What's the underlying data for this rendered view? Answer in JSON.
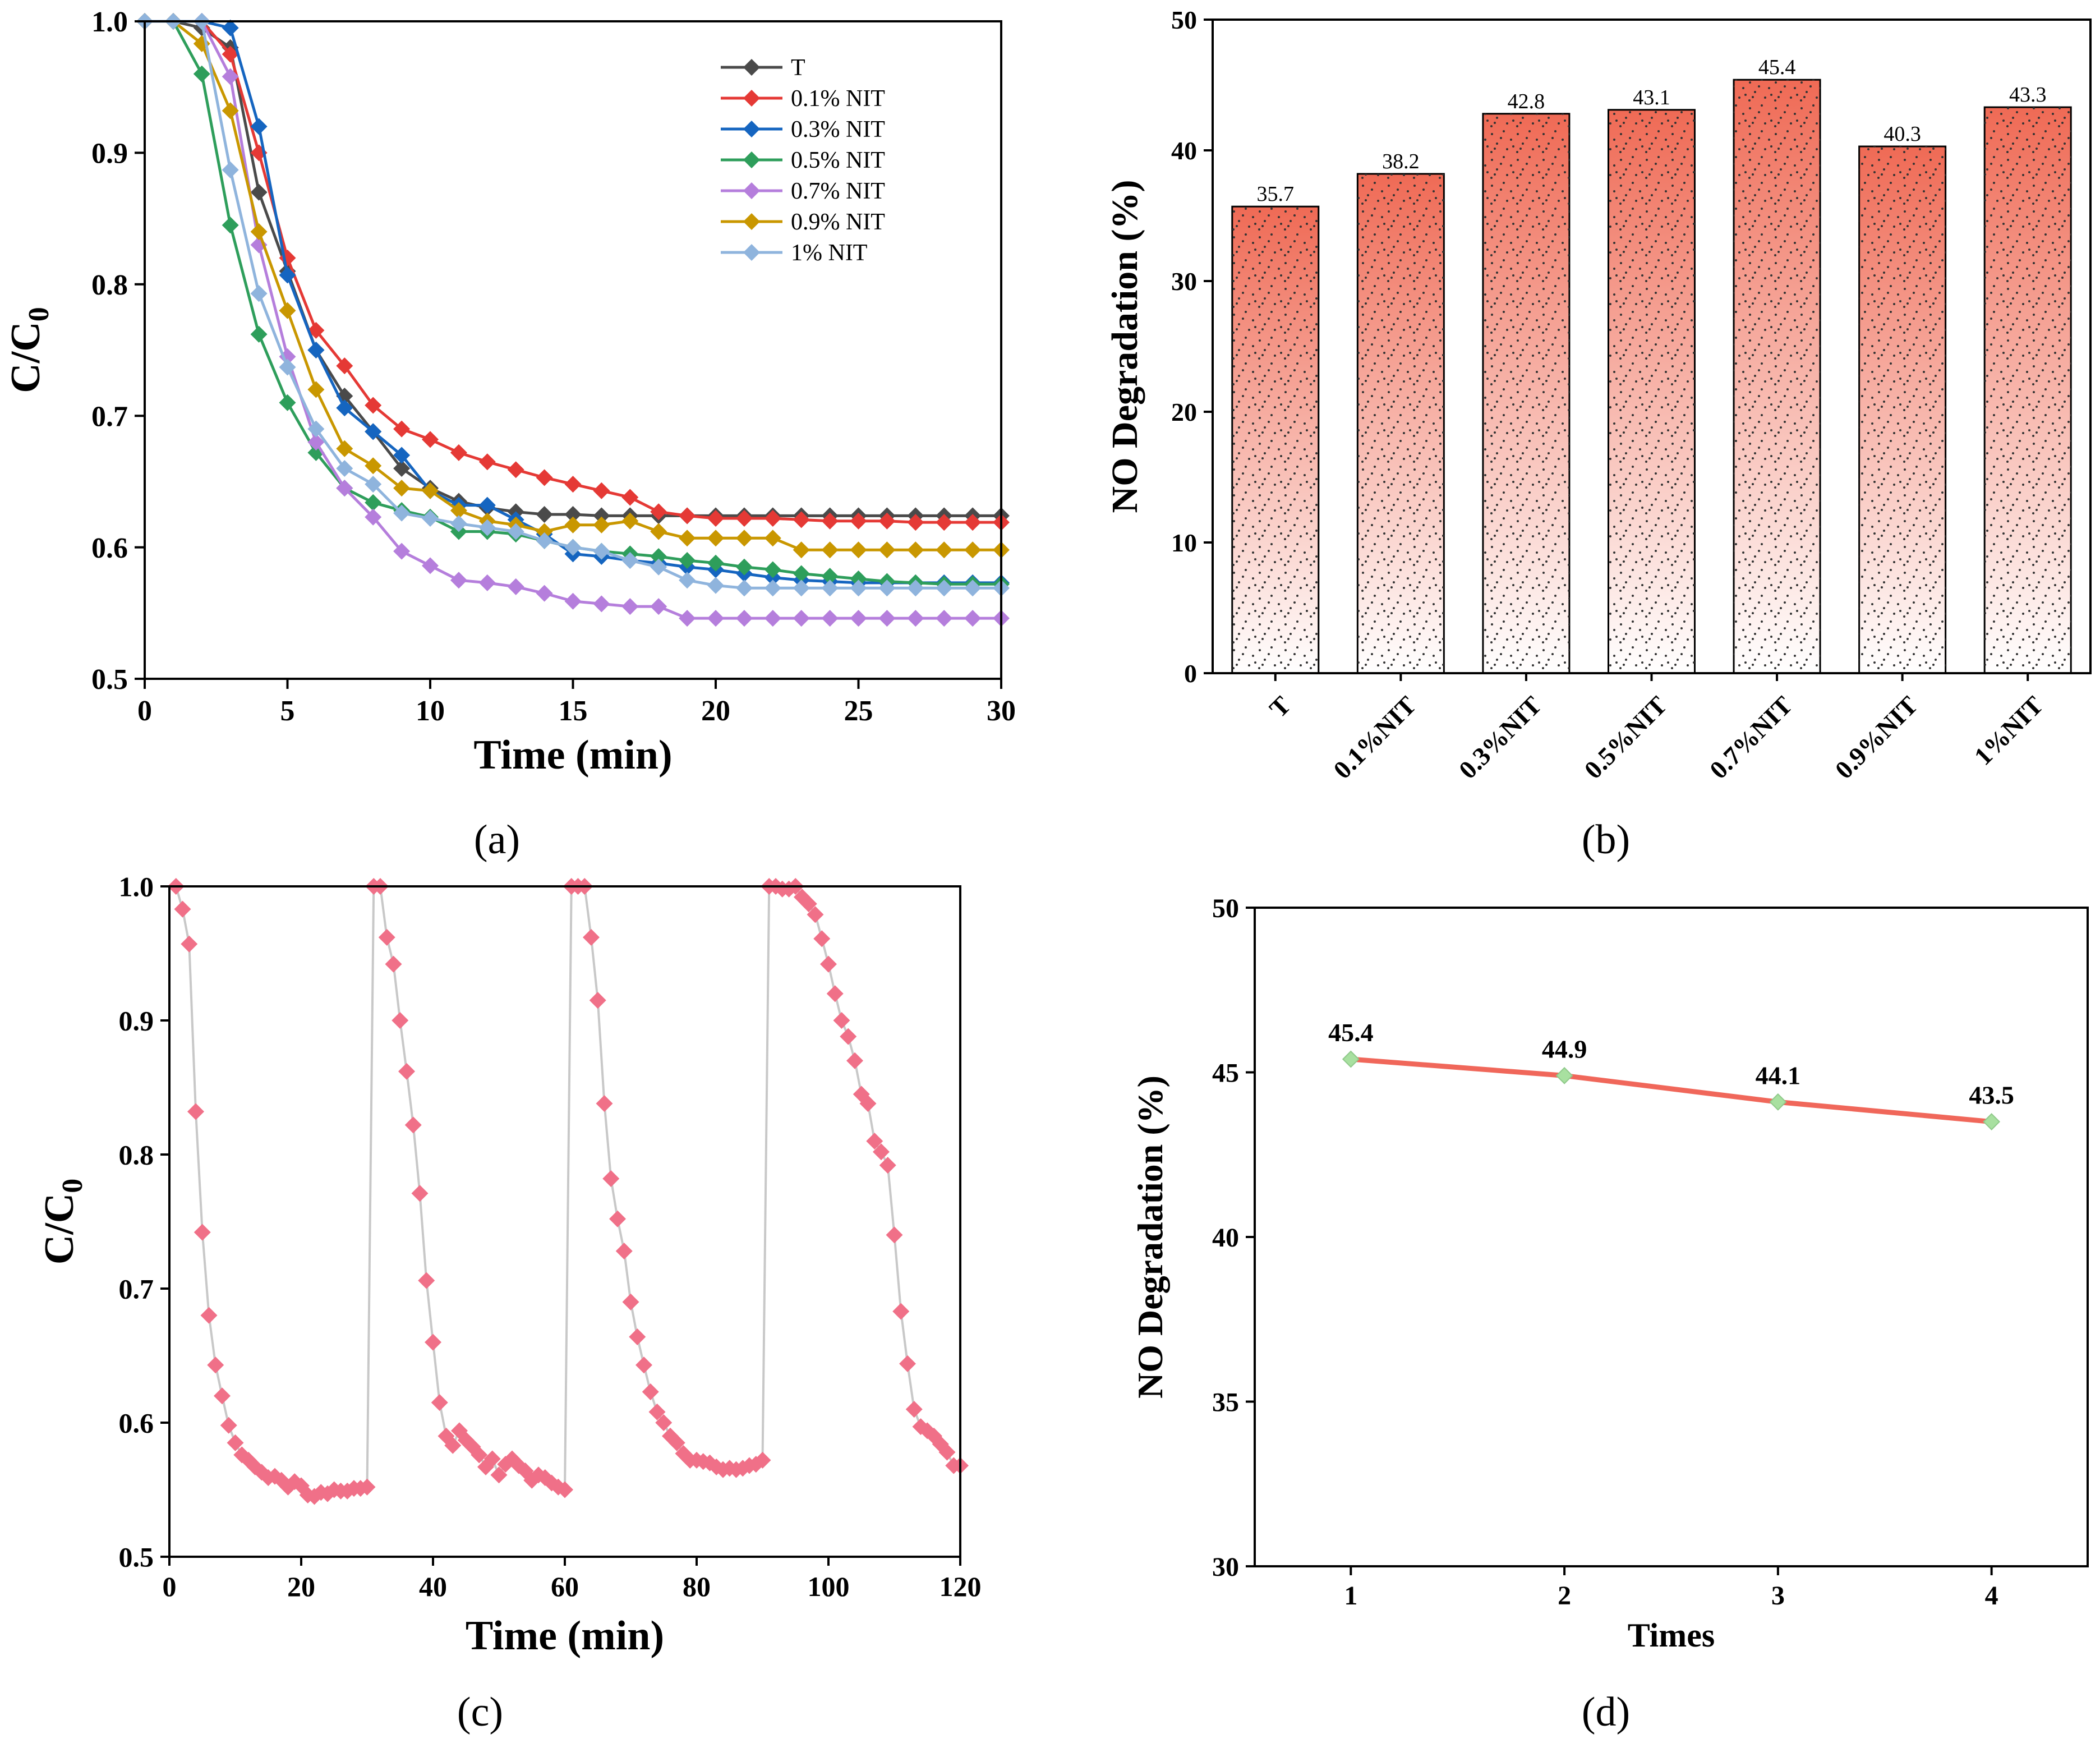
{
  "colors": {
    "series_a": [
      "#4a4a4a",
      "#e53935",
      "#1565c0",
      "#2e9e5b",
      "#b57edc",
      "#c99700",
      "#8fb4dd"
    ],
    "bar_top": "#ef6a55",
    "bar_bottom": "#ffffff",
    "cycle_marker": "#f07088",
    "cycle_line": "#c8c8c8",
    "line_d": "#f0675a",
    "marker_d": "#a8e0a0"
  },
  "chart_data": [
    {
      "id": "a",
      "panel_label": "(a)",
      "type": "line",
      "title": "",
      "xlabel": "Time (min)",
      "ylabel": "C/C",
      "ylabel_sub": "0",
      "xlim": [
        0,
        30
      ],
      "ylim": [
        0.5,
        1.0
      ],
      "xticks": [
        0,
        5,
        10,
        15,
        20,
        25,
        30
      ],
      "yticks": [
        0.5,
        0.6,
        0.7,
        0.8,
        0.9,
        1.0
      ],
      "ytick_labels": [
        "0.5",
        "0.6",
        "0.7",
        "0.8",
        "0.9",
        "1.0"
      ],
      "legend_position": "top-right",
      "x": [
        0,
        1,
        2,
        3,
        4,
        5,
        6,
        7,
        8,
        9,
        10,
        11,
        12,
        13,
        14,
        15,
        16,
        17,
        18,
        19,
        20,
        21,
        22,
        23,
        24,
        25,
        26,
        27,
        28,
        29,
        30
      ],
      "series": [
        {
          "name": "T",
          "values": [
            1.0,
            1.0,
            0.995,
            0.98,
            0.87,
            0.81,
            0.75,
            0.715,
            0.688,
            0.66,
            0.645,
            0.635,
            0.63,
            0.627,
            0.625,
            0.625,
            0.624,
            0.624,
            0.624,
            0.624,
            0.624,
            0.624,
            0.624,
            0.624,
            0.624,
            0.624,
            0.624,
            0.624,
            0.624,
            0.624,
            0.624
          ]
        },
        {
          "name": "0.1% NIT",
          "values": [
            1.0,
            1.0,
            1.0,
            0.975,
            0.9,
            0.82,
            0.765,
            0.738,
            0.708,
            0.69,
            0.682,
            0.672,
            0.665,
            0.659,
            0.653,
            0.648,
            0.643,
            0.638,
            0.627,
            0.624,
            0.622,
            0.622,
            0.622,
            0.621,
            0.62,
            0.62,
            0.62,
            0.619,
            0.619,
            0.619,
            0.619
          ]
        },
        {
          "name": "0.3% NIT",
          "values": [
            1.0,
            1.0,
            1.0,
            0.995,
            0.92,
            0.807,
            0.75,
            0.706,
            0.688,
            0.67,
            0.643,
            0.632,
            0.632,
            0.621,
            0.61,
            0.595,
            0.593,
            0.59,
            0.588,
            0.585,
            0.583,
            0.58,
            0.577,
            0.575,
            0.574,
            0.573,
            0.573,
            0.573,
            0.573,
            0.573,
            0.573
          ]
        },
        {
          "name": "0.5% NIT",
          "values": [
            1.0,
            1.0,
            0.96,
            0.845,
            0.762,
            0.71,
            0.672,
            0.645,
            0.634,
            0.628,
            0.623,
            0.612,
            0.612,
            0.61,
            0.605,
            0.6,
            0.597,
            0.595,
            0.593,
            0.59,
            0.588,
            0.585,
            0.583,
            0.58,
            0.578,
            0.576,
            0.574,
            0.573,
            0.572,
            0.572,
            0.572
          ]
        },
        {
          "name": "0.7% NIT",
          "values": [
            1.0,
            1.0,
            1.0,
            0.958,
            0.83,
            0.745,
            0.68,
            0.645,
            0.623,
            0.597,
            0.586,
            0.575,
            0.573,
            0.57,
            0.565,
            0.559,
            0.557,
            0.555,
            0.555,
            0.546,
            0.546,
            0.546,
            0.546,
            0.546,
            0.546,
            0.546,
            0.546,
            0.546,
            0.546,
            0.546,
            0.546
          ]
        },
        {
          "name": "0.9% NIT",
          "values": [
            1.0,
            1.0,
            0.983,
            0.932,
            0.84,
            0.78,
            0.72,
            0.675,
            0.662,
            0.645,
            0.643,
            0.628,
            0.62,
            0.617,
            0.612,
            0.617,
            0.617,
            0.62,
            0.612,
            0.607,
            0.607,
            0.607,
            0.607,
            0.598,
            0.598,
            0.598,
            0.598,
            0.598,
            0.598,
            0.598,
            0.598
          ]
        },
        {
          "name": "1% NIT",
          "values": [
            1.0,
            1.0,
            1.0,
            0.887,
            0.793,
            0.737,
            0.69,
            0.66,
            0.648,
            0.626,
            0.622,
            0.618,
            0.615,
            0.612,
            0.605,
            0.6,
            0.597,
            0.59,
            0.585,
            0.575,
            0.571,
            0.569,
            0.569,
            0.569,
            0.569,
            0.569,
            0.569,
            0.569,
            0.569,
            0.569,
            0.569
          ]
        }
      ]
    },
    {
      "id": "b",
      "panel_label": "(b)",
      "type": "bar",
      "title": "",
      "xlabel": "",
      "ylabel": "NO Degradation (%)",
      "ylim": [
        0,
        50
      ],
      "yticks": [
        0,
        10,
        20,
        30,
        40,
        50
      ],
      "categories": [
        "T",
        "0.1%NIT",
        "0.3%NIT",
        "0.5%NIT",
        "0.7%NIT",
        "0.9%NIT",
        "1%NIT"
      ],
      "values": [
        35.7,
        38.2,
        42.8,
        43.1,
        45.4,
        40.3,
        43.3
      ],
      "data_labels": [
        "35.7",
        "38.2",
        "42.8",
        "43.1",
        "45.4",
        "40.3",
        "43.3"
      ]
    },
    {
      "id": "c",
      "panel_label": "(c)",
      "type": "line",
      "title": "",
      "xlabel": "Time (min)",
      "ylabel": "C/C",
      "ylabel_sub": "0",
      "xlim": [
        0,
        120
      ],
      "ylim": [
        0.5,
        1.0
      ],
      "xticks": [
        0,
        20,
        40,
        60,
        80,
        100,
        120
      ],
      "yticks": [
        0.5,
        0.6,
        0.7,
        0.8,
        0.9,
        1.0
      ],
      "ytick_labels": [
        "0.5",
        "0.6",
        "0.7",
        "0.8",
        "0.9",
        "1.0"
      ],
      "cycle_start_min": [
        1,
        31,
        61,
        91
      ],
      "cycle_values": [
        [
          1.0,
          0.983,
          0.957,
          0.832,
          0.742,
          0.68,
          0.643,
          0.62,
          0.598,
          0.585,
          0.576,
          0.572,
          0.567,
          0.563,
          0.559,
          0.56,
          0.557,
          0.552,
          0.556,
          0.553,
          0.546,
          0.545,
          0.548,
          0.547,
          0.55,
          0.549,
          0.549,
          0.551,
          0.551,
          0.552
        ],
        [
          1.0,
          1.0,
          0.962,
          0.942,
          0.9,
          0.862,
          0.822,
          0.771,
          0.706,
          0.66,
          0.615,
          0.59,
          0.583,
          0.594,
          0.587,
          0.582,
          0.576,
          0.567,
          0.573,
          0.561,
          0.569,
          0.573,
          0.568,
          0.564,
          0.557,
          0.561,
          0.559,
          0.555,
          0.552,
          0.55
        ],
        [
          1.0,
          1.0,
          1.0,
          0.962,
          0.915,
          0.838,
          0.782,
          0.752,
          0.728,
          0.69,
          0.664,
          0.643,
          0.623,
          0.608,
          0.6,
          0.59,
          0.585,
          0.577,
          0.572,
          0.572,
          0.571,
          0.57,
          0.567,
          0.565,
          0.566,
          0.565,
          0.566,
          0.568,
          0.569,
          0.572
        ],
        [
          1.0,
          1.0,
          0.998,
          0.998,
          1.0,
          0.992,
          0.987,
          0.979,
          0.961,
          0.942,
          0.92,
          0.9,
          0.888,
          0.87,
          0.845,
          0.838,
          0.81,
          0.802,
          0.792,
          0.74,
          0.683,
          0.644,
          0.61,
          0.597,
          0.594,
          0.59,
          0.584,
          0.578,
          0.568,
          0.568
        ]
      ],
      "series": [
        {
          "name": "cycles",
          "values_ref": "cycle_values"
        }
      ]
    },
    {
      "id": "d",
      "panel_label": "(d)",
      "type": "line",
      "title": "",
      "xlabel": "Times",
      "ylabel": "NO Degradation (%)",
      "xlim": [
        0.55,
        4.45
      ],
      "ylim": [
        30,
        50
      ],
      "xticks": [
        1,
        2,
        3,
        4
      ],
      "yticks": [
        30,
        35,
        40,
        45,
        50
      ],
      "x": [
        1,
        2,
        3,
        4
      ],
      "values": [
        45.4,
        44.9,
        44.1,
        43.5
      ],
      "data_labels": [
        "45.4",
        "44.9",
        "44.1",
        "43.5"
      ]
    }
  ]
}
